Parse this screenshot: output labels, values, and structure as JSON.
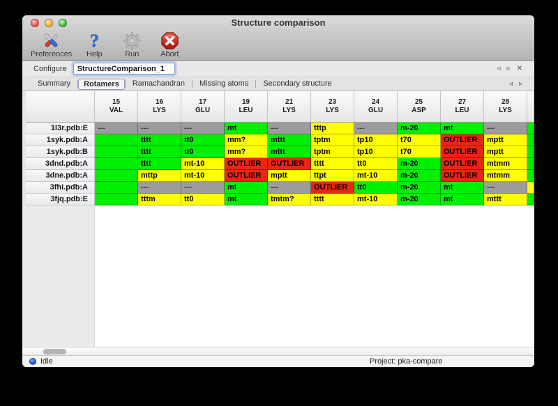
{
  "window": {
    "title": "Structure comparison"
  },
  "toolbar": {
    "buttons": [
      {
        "label": "Preferences",
        "icon": "tools-icon"
      },
      {
        "label": "Help",
        "icon": "question-icon"
      },
      {
        "label": "Run",
        "icon": "gear-icon"
      },
      {
        "label": "Abort",
        "icon": "stop-icon"
      }
    ]
  },
  "configure": {
    "label": "Configure",
    "value": "StructureComparison_1"
  },
  "pane_nav": {
    "prev": "◃",
    "next": "▹",
    "close": "✕"
  },
  "tabs": {
    "selected": "Rotamers",
    "items": [
      "Summary",
      "Rotamers",
      "Ramachandran",
      "Missing atoms",
      "Secondary structure"
    ]
  },
  "rotamer_table": {
    "columns": [
      {
        "num": "15",
        "res": "VAL"
      },
      {
        "num": "16",
        "res": "LYS"
      },
      {
        "num": "17",
        "res": "GLU"
      },
      {
        "num": "19",
        "res": "LEU"
      },
      {
        "num": "21",
        "res": "LYS"
      },
      {
        "num": "23",
        "res": "LYS"
      },
      {
        "num": "24",
        "res": "GLU"
      },
      {
        "num": "25",
        "res": "ASP"
      },
      {
        "num": "27",
        "res": "LEU"
      },
      {
        "num": "28",
        "res": "LYS"
      }
    ],
    "rows": [
      {
        "label": "1l3r.pdb:E",
        "edge": "green",
        "cells": [
          [
            "---",
            "gray"
          ],
          [
            "---",
            "gray"
          ],
          [
            "---",
            "gray"
          ],
          [
            "mt",
            "green"
          ],
          [
            "---",
            "gray"
          ],
          [
            "tttp",
            "yellow"
          ],
          [
            "---",
            "gray"
          ],
          [
            "m-20",
            "green"
          ],
          [
            "mt",
            "green"
          ],
          [
            "---",
            "gray"
          ]
        ]
      },
      {
        "label": "1syk.pdb:A",
        "edge": "green",
        "cells": [
          [
            "",
            "green"
          ],
          [
            "tttt",
            "green"
          ],
          [
            "tt0",
            "green"
          ],
          [
            "mm?",
            "yellow"
          ],
          [
            "mttt",
            "green"
          ],
          [
            "tptm",
            "yellow"
          ],
          [
            "tp10",
            "yellow"
          ],
          [
            "t70",
            "yellow"
          ],
          [
            "OUTLIER",
            "red"
          ],
          [
            "mptt",
            "yellow"
          ]
        ]
      },
      {
        "label": "1syk.pdb:B",
        "edge": "green",
        "cells": [
          [
            "",
            "green"
          ],
          [
            "tttt",
            "green"
          ],
          [
            "tt0",
            "green"
          ],
          [
            "mm?",
            "yellow"
          ],
          [
            "mttt",
            "green"
          ],
          [
            "tptm",
            "yellow"
          ],
          [
            "tp10",
            "yellow"
          ],
          [
            "t70",
            "yellow"
          ],
          [
            "OUTLIER",
            "red"
          ],
          [
            "mptt",
            "yellow"
          ]
        ]
      },
      {
        "label": "3dnd.pdb:A",
        "edge": "green",
        "cells": [
          [
            "",
            "green"
          ],
          [
            "tttt",
            "green"
          ],
          [
            "mt-10",
            "yellow"
          ],
          [
            "OUTLIER",
            "red"
          ],
          [
            "OUTLIER",
            "red"
          ],
          [
            "tttt",
            "yellow"
          ],
          [
            "tt0",
            "yellow"
          ],
          [
            "m-20",
            "green"
          ],
          [
            "OUTLIER",
            "red"
          ],
          [
            "mtmm",
            "yellow"
          ]
        ]
      },
      {
        "label": "3dne.pdb:A",
        "edge": "green",
        "cells": [
          [
            "",
            "green"
          ],
          [
            "mttp",
            "yellow"
          ],
          [
            "mt-10",
            "yellow"
          ],
          [
            "OUTLIER",
            "red"
          ],
          [
            "mptt",
            "yellow"
          ],
          [
            "ttpt",
            "yellow"
          ],
          [
            "mt-10",
            "yellow"
          ],
          [
            "m-20",
            "green"
          ],
          [
            "OUTLIER",
            "red"
          ],
          [
            "mtmm",
            "yellow"
          ]
        ]
      },
      {
        "label": "3fhi.pdb:A",
        "edge": "yellow",
        "cells": [
          [
            "",
            "green"
          ],
          [
            "---",
            "gray"
          ],
          [
            "---",
            "gray"
          ],
          [
            "mt",
            "green"
          ],
          [
            "---",
            "gray"
          ],
          [
            "OUTLIER",
            "red"
          ],
          [
            "tt0",
            "green"
          ],
          [
            "m-20",
            "green"
          ],
          [
            "mt",
            "green"
          ],
          [
            "---",
            "gray"
          ]
        ]
      },
      {
        "label": "3fjq.pdb:E",
        "edge": "green",
        "cells": [
          [
            "",
            "green"
          ],
          [
            "tttm",
            "yellow"
          ],
          [
            "tt0",
            "yellow"
          ],
          [
            "mt",
            "green"
          ],
          [
            "tmtm?",
            "yellow"
          ],
          [
            "tttt",
            "yellow"
          ],
          [
            "mt-10",
            "yellow"
          ],
          [
            "m-20",
            "green"
          ],
          [
            "mt",
            "green"
          ],
          [
            "mttt",
            "yellow"
          ]
        ]
      }
    ]
  },
  "status_bar": {
    "state": "Idle",
    "project": "Project: pka-compare"
  },
  "colors": {
    "green": "#00ee00",
    "yellow": "#ffff00",
    "red": "#e92612",
    "gray": "#9c9c9c"
  }
}
